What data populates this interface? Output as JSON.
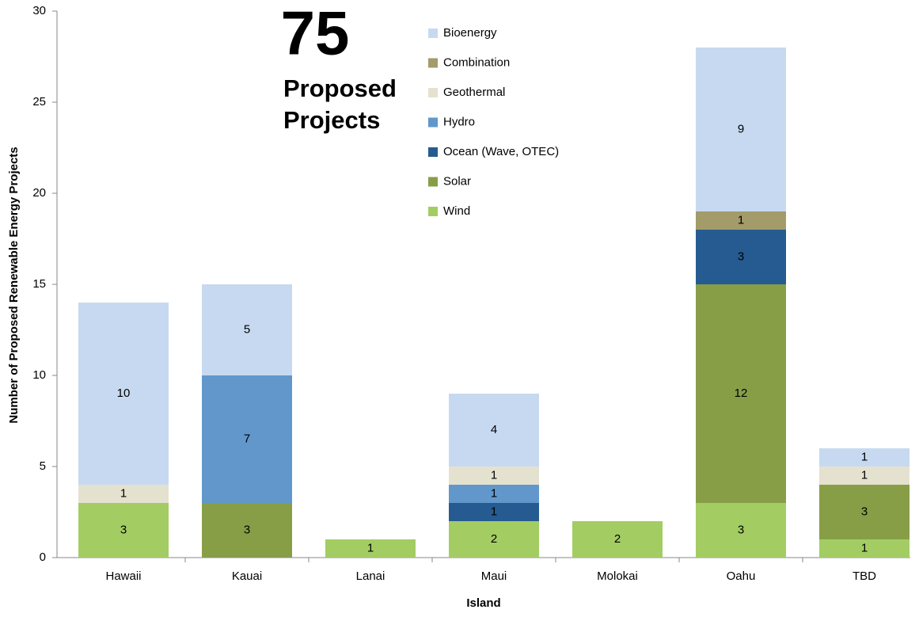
{
  "chart_data": {
    "type": "stacked_bar",
    "y_axis_label": "Number of Proposed Renewable Energy Projects",
    "x_axis_label": "Island",
    "annotation": {
      "count": 75,
      "lines": [
        "Proposed",
        "Projects"
      ],
      "color": "#7e9b41"
    },
    "categories": [
      "Hawaii",
      "Kauai",
      "Lanai",
      "Maui",
      "Molokai",
      "Oahu",
      "TBD"
    ],
    "series": [
      {
        "name": "Bioenergy",
        "color": "#c6d9f0",
        "values": [
          10,
          5,
          null,
          4,
          null,
          9,
          1
        ]
      },
      {
        "name": "Combination",
        "color": "#a39b69",
        "values": [
          null,
          null,
          null,
          null,
          null,
          1,
          null
        ]
      },
      {
        "name": "Geothermal",
        "color": "#e5e1cf",
        "values": [
          1,
          null,
          null,
          1,
          null,
          null,
          1
        ]
      },
      {
        "name": "Hydro",
        "color": "#6197cb",
        "values": [
          null,
          7,
          null,
          1,
          null,
          null,
          null
        ]
      },
      {
        "name": "Ocean (Wave, OTEC)",
        "color": "#255b90",
        "values": [
          null,
          null,
          null,
          1,
          null,
          3,
          null
        ]
      },
      {
        "name": "Solar",
        "color": "#879e47",
        "values": [
          null,
          3,
          null,
          null,
          null,
          12,
          3
        ]
      },
      {
        "name": "Wind",
        "color": "#a3cd63",
        "values": [
          3,
          null,
          1,
          2,
          2,
          3,
          1
        ]
      }
    ],
    "ylim": [
      0,
      30
    ],
    "yticks": [
      0,
      5,
      10,
      15,
      20,
      25,
      30
    ],
    "legend": "top-center"
  }
}
